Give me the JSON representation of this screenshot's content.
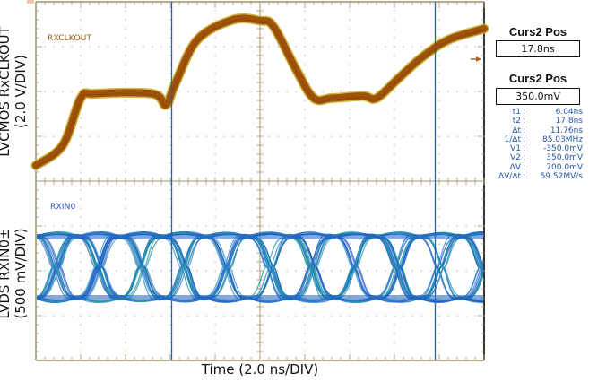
{
  "axes": {
    "top_ylabel_line1": "LVCMOS RxCLKOUT",
    "top_ylabel_line2": "(2.0 V/DIV)",
    "bottom_ylabel_line1": "LVDS RXIN0±",
    "bottom_ylabel_line2": "(500 mV/DIV)",
    "xlabel": "Time (2.0 ns/DIV)"
  },
  "channels": {
    "ch1": {
      "label": "RXCLKOUT",
      "color": "#a0520a",
      "edge_color": "#c9b030"
    },
    "ch2": {
      "label": "RXIN0",
      "colors": [
        "#1f5fc0",
        "#2a8fbf",
        "#1b9a9a",
        "#3a6fd8"
      ]
    }
  },
  "cursor_panel": {
    "time_heading": "Curs2 Pos",
    "time_value": "17.8ns",
    "volt_heading": "Curs2 Pos",
    "volt_value": "350.0mV",
    "measurements": [
      {
        "key": "t1",
        "value": "6.04ns"
      },
      {
        "key": "t2",
        "value": "17.8ns"
      },
      {
        "key": "Δt",
        "value": "11.76ns"
      },
      {
        "key": "1/Δt",
        "value": "85.03MHz"
      },
      {
        "key": "V1",
        "value": "-350.0mV"
      },
      {
        "key": "V2",
        "value": "350.0mV"
      },
      {
        "key": "ΔV",
        "value": "700.0mV"
      },
      {
        "key": "ΔV/Δt",
        "value": "59.52MV/s"
      }
    ]
  },
  "chart_data": {
    "type": "line",
    "title": "",
    "xlabel": "Time (2.0 ns/DIV)",
    "grid": true,
    "divisions": {
      "x": 10,
      "y": 8
    },
    "cursors": {
      "t1_ns": 6.04,
      "t2_ns": 17.8,
      "color": "#2060c0"
    },
    "panels": [
      {
        "name": "RXCLKOUT",
        "ylabel": "LVCMOS RxCLKOUT (2.0 V/DIV)",
        "type": "line",
        "x_div": [
          0,
          0.6,
          1.0,
          1.3,
          2.6,
          2.9,
          3.1,
          3.6,
          4.4,
          5.0,
          5.3,
          5.8,
          6.2,
          6.6,
          7.3,
          7.6,
          8.1,
          8.6,
          9.2,
          10.0
        ],
        "y_div_from_top": [
          3.65,
          3.2,
          2.15,
          2.05,
          2.05,
          2.3,
          1.85,
          0.85,
          0.4,
          0.42,
          0.55,
          1.5,
          2.15,
          2.15,
          2.1,
          2.15,
          1.7,
          1.25,
          0.85,
          0.6
        ]
      },
      {
        "name": "RXIN0",
        "ylabel": "LVDS RXIN0± (500 mV/DIV)",
        "type": "eye",
        "unit_interval_div": 0.952,
        "first_crossing_div": 0.46,
        "high_level_div_from_top": 5.24,
        "low_level_div_from_top": 6.6
      }
    ]
  }
}
